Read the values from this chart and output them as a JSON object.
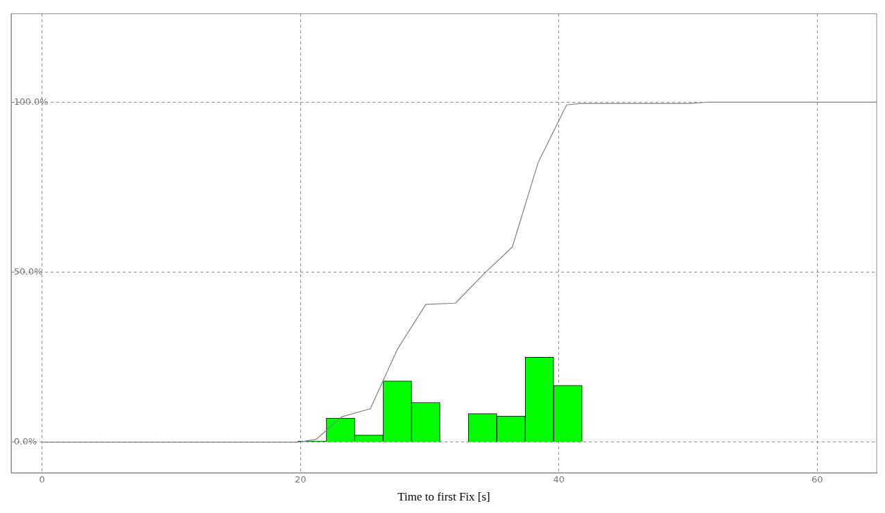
{
  "chart_data": {
    "type": "histogram",
    "xlabel": "Time to first Fix [s]",
    "xlim": [
      -2.4,
      64.6
    ],
    "xticks": [
      0,
      20,
      40,
      60
    ],
    "ylim": [
      -9,
      126
    ],
    "yticks": [
      {
        "value": 0,
        "label": "0.0%"
      },
      {
        "value": 50,
        "label": "50.0%"
      },
      {
        "value": 100,
        "label": "100.0%"
      }
    ],
    "grid": true,
    "legend": false,
    "series": [
      {
        "color": "#00ff00",
        "bins": [
          19.8,
          22,
          24.2,
          26.4,
          28.6,
          30.8,
          33,
          35.2,
          37.4,
          39.6,
          41.8
        ],
        "values": [
          0.3,
          7.1,
          2.1,
          18,
          11.7,
          0,
          8.4,
          7.7,
          25,
          16.7
        ]
      },
      {
        "type": "line",
        "color": "#808080",
        "x": [
          0,
          19.8,
          21.2,
          23.2,
          25.4,
          26.2,
          27.5,
          29.7,
          32.0,
          34.3,
          36.4,
          38.4,
          40.6,
          41.6,
          50.1,
          51.5,
          64.6
        ],
        "values": [
          0,
          0,
          0.8,
          7.5,
          9.8,
          16.5,
          27.3,
          40.5,
          40.9,
          49.9,
          57.4,
          82.3,
          99.2,
          99.6,
          99.6,
          100,
          100
        ]
      }
    ]
  }
}
